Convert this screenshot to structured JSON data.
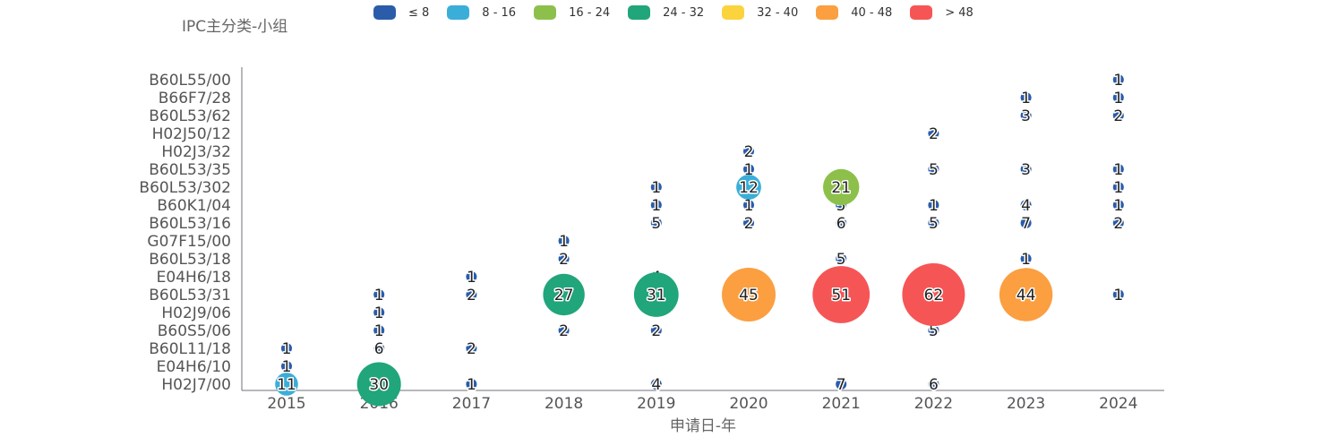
{
  "chart_data": {
    "type": "scatter",
    "title": "",
    "ylabel": "IPC主分类-小组",
    "xlabel": "申请日-年",
    "x_categories": [
      "2015",
      "2016",
      "2017",
      "2018",
      "2019",
      "2020",
      "2021",
      "2022",
      "2023",
      "2024"
    ],
    "y_categories": [
      "H02J7/00",
      "E04H6/10",
      "B60L11/18",
      "B60S5/06",
      "H02J9/06",
      "B60L53/31",
      "E04H6/18",
      "B60L53/18",
      "G07F15/00",
      "B60L53/16",
      "B60K1/04",
      "B60L53/302",
      "B60L53/35",
      "H02J3/32",
      "H02J50/12",
      "B60L53/62",
      "B66F7/28",
      "B60L55/00"
    ],
    "legend": {
      "position": "top",
      "items": [
        {
          "label": "≤ 8",
          "color": "#2a5caa"
        },
        {
          "label": "8 - 16",
          "color": "#3aaed8"
        },
        {
          "label": "16 - 24",
          "color": "#8dc04a"
        },
        {
          "label": "24 - 32",
          "color": "#21a57b"
        },
        {
          "label": "32 - 40",
          "color": "#fbd33c"
        },
        {
          "label": "40 - 48",
          "color": "#fb9f40"
        },
        {
          "label": "> 48",
          "color": "#f65556"
        }
      ]
    },
    "points": [
      {
        "x": "2015",
        "y": "H02J7/00",
        "value": 11
      },
      {
        "x": "2015",
        "y": "E04H6/10",
        "value": 1
      },
      {
        "x": "2015",
        "y": "B60L11/18",
        "value": 1
      },
      {
        "x": "2016",
        "y": "H02J7/00",
        "value": 30
      },
      {
        "x": "2016",
        "y": "B60L11/18",
        "value": 6
      },
      {
        "x": "2016",
        "y": "B60S5/06",
        "value": 1
      },
      {
        "x": "2016",
        "y": "H02J9/06",
        "value": 1
      },
      {
        "x": "2016",
        "y": "B60L53/31",
        "value": 1
      },
      {
        "x": "2017",
        "y": "H02J7/00",
        "value": 1
      },
      {
        "x": "2017",
        "y": "B60L11/18",
        "value": 2
      },
      {
        "x": "2017",
        "y": "B60L53/31",
        "value": 2
      },
      {
        "x": "2017",
        "y": "E04H6/18",
        "value": 1
      },
      {
        "x": "2018",
        "y": "B60S5/06",
        "value": 2
      },
      {
        "x": "2018",
        "y": "B60L53/31",
        "value": 27
      },
      {
        "x": "2018",
        "y": "B60L53/18",
        "value": 2
      },
      {
        "x": "2018",
        "y": "G07F15/00",
        "value": 1
      },
      {
        "x": "2019",
        "y": "H02J7/00",
        "value": 4
      },
      {
        "x": "2019",
        "y": "B60S5/06",
        "value": 2
      },
      {
        "x": "2019",
        "y": "B60L53/31",
        "value": 31
      },
      {
        "x": "2019",
        "y": "E04H6/18",
        "value": 4
      },
      {
        "x": "2019",
        "y": "B60L53/16",
        "value": 5
      },
      {
        "x": "2019",
        "y": "B60K1/04",
        "value": 1
      },
      {
        "x": "2019",
        "y": "B60L53/302",
        "value": 1
      },
      {
        "x": "2020",
        "y": "B60L53/31",
        "value": 45
      },
      {
        "x": "2020",
        "y": "E04H6/18",
        "value": 2
      },
      {
        "x": "2020",
        "y": "B60L53/16",
        "value": 2
      },
      {
        "x": "2020",
        "y": "B60K1/04",
        "value": 1
      },
      {
        "x": "2020",
        "y": "B60L53/302",
        "value": 12
      },
      {
        "x": "2020",
        "y": "B60L53/35",
        "value": 1
      },
      {
        "x": "2020",
        "y": "H02J3/32",
        "value": 2
      },
      {
        "x": "2021",
        "y": "H02J7/00",
        "value": 7
      },
      {
        "x": "2021",
        "y": "B60L53/31",
        "value": 51
      },
      {
        "x": "2021",
        "y": "B60L53/18",
        "value": 5
      },
      {
        "x": "2021",
        "y": "B60L53/16",
        "value": 6
      },
      {
        "x": "2021",
        "y": "B60K1/04",
        "value": 5
      },
      {
        "x": "2021",
        "y": "B60L53/302",
        "value": 21
      },
      {
        "x": "2022",
        "y": "H02J7/00",
        "value": 6
      },
      {
        "x": "2022",
        "y": "B60S5/06",
        "value": 5
      },
      {
        "x": "2022",
        "y": "B60L53/31",
        "value": 62
      },
      {
        "x": "2022",
        "y": "E04H6/18",
        "value": 4
      },
      {
        "x": "2022",
        "y": "B60L53/16",
        "value": 5
      },
      {
        "x": "2022",
        "y": "B60K1/04",
        "value": 1
      },
      {
        "x": "2022",
        "y": "B60L53/35",
        "value": 5
      },
      {
        "x": "2022",
        "y": "H02J50/12",
        "value": 2
      },
      {
        "x": "2023",
        "y": "B60L53/31",
        "value": 44
      },
      {
        "x": "2023",
        "y": "E04H6/18",
        "value": 4
      },
      {
        "x": "2023",
        "y": "B60L53/18",
        "value": 1
      },
      {
        "x": "2023",
        "y": "B60L53/16",
        "value": 7
      },
      {
        "x": "2023",
        "y": "B60K1/04",
        "value": 4
      },
      {
        "x": "2023",
        "y": "B60L53/35",
        "value": 3
      },
      {
        "x": "2023",
        "y": "B60L53/62",
        "value": 3
      },
      {
        "x": "2023",
        "y": "B66F7/28",
        "value": 1
      },
      {
        "x": "2024",
        "y": "B60L53/31",
        "value": 1
      },
      {
        "x": "2024",
        "y": "B60L53/16",
        "value": 2
      },
      {
        "x": "2024",
        "y": "B60K1/04",
        "value": 1
      },
      {
        "x": "2024",
        "y": "B60L53/302",
        "value": 1
      },
      {
        "x": "2024",
        "y": "B60L53/35",
        "value": 1
      },
      {
        "x": "2024",
        "y": "B60L53/62",
        "value": 2
      },
      {
        "x": "2024",
        "y": "B60L55/00",
        "value": 1
      },
      {
        "x": "2024",
        "y": "B66F7/28",
        "value": 1
      }
    ]
  }
}
